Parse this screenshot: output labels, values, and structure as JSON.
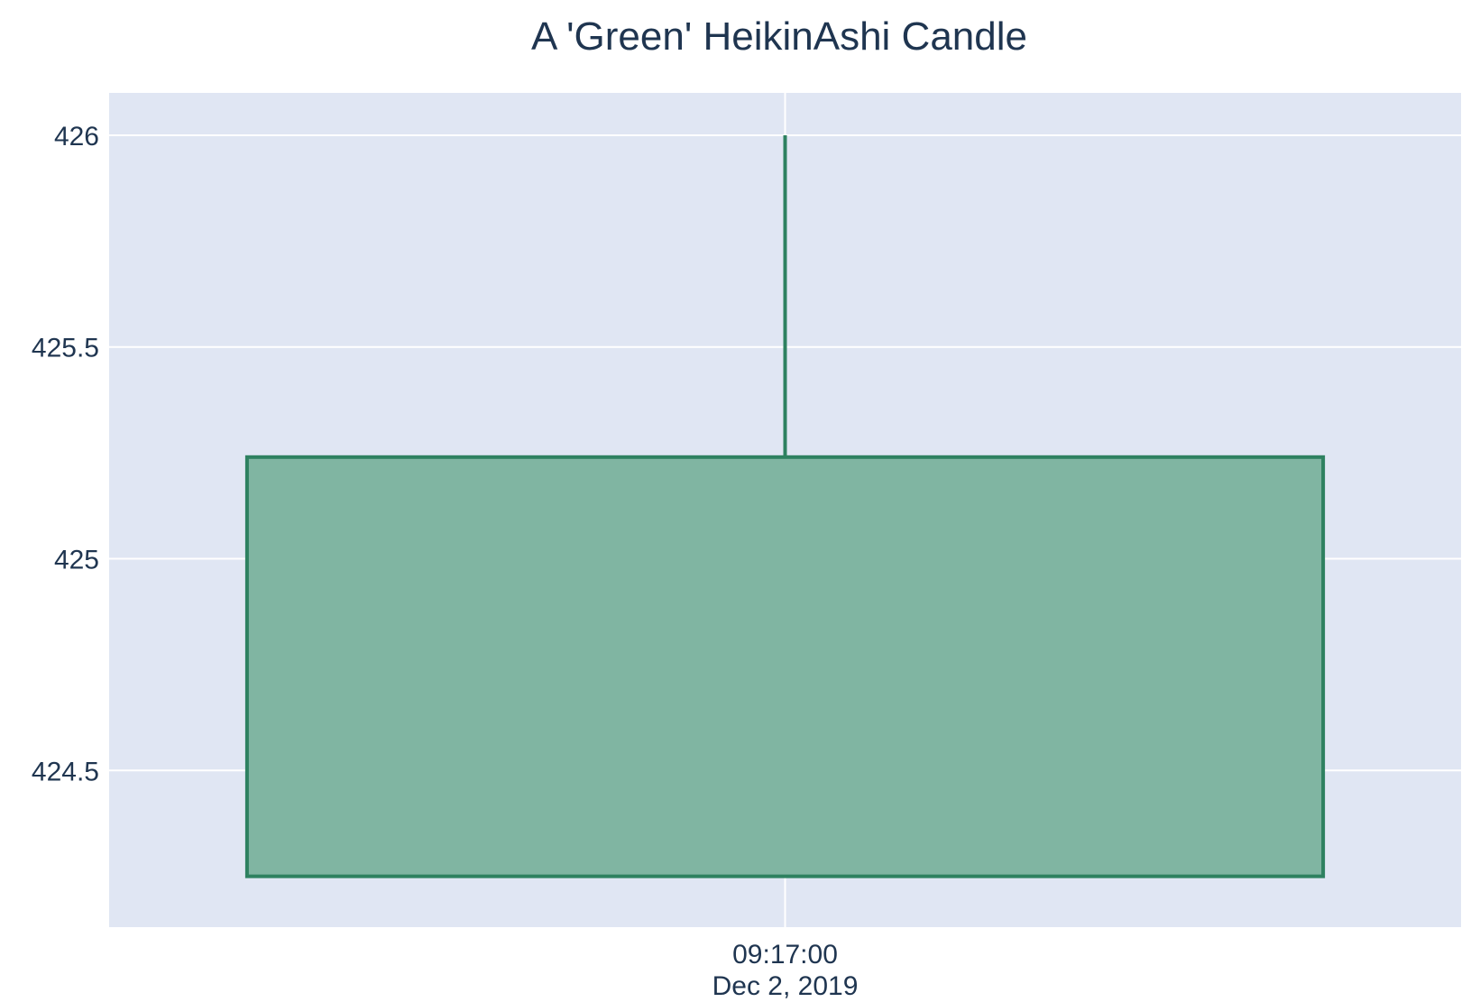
{
  "chart_data": {
    "type": "candlestick",
    "title": "A 'Green' HeikinAshi Candle",
    "xlabel": "",
    "ylabel": "",
    "x_tick_labels": [
      {
        "time": "09:17:00",
        "date": "Dec 2, 2019"
      }
    ],
    "y_ticks": [
      424.5,
      425,
      425.5,
      426
    ],
    "y_tick_labels": [
      "424.5",
      "425",
      "425.5",
      "426"
    ],
    "ylim": [
      424.13,
      426.1
    ],
    "grid": true,
    "candles": [
      {
        "time": "09:17:00",
        "date": "Dec 2, 2019",
        "open": 424.25,
        "high": 426.0,
        "low": 424.25,
        "close": 425.24
      }
    ],
    "colors": {
      "plot_background": "#e0e6f3",
      "grid": "#ffffff",
      "increasing_line": "#2e8160",
      "increasing_fill": "#80b5a2",
      "text": "#1f3550"
    }
  }
}
